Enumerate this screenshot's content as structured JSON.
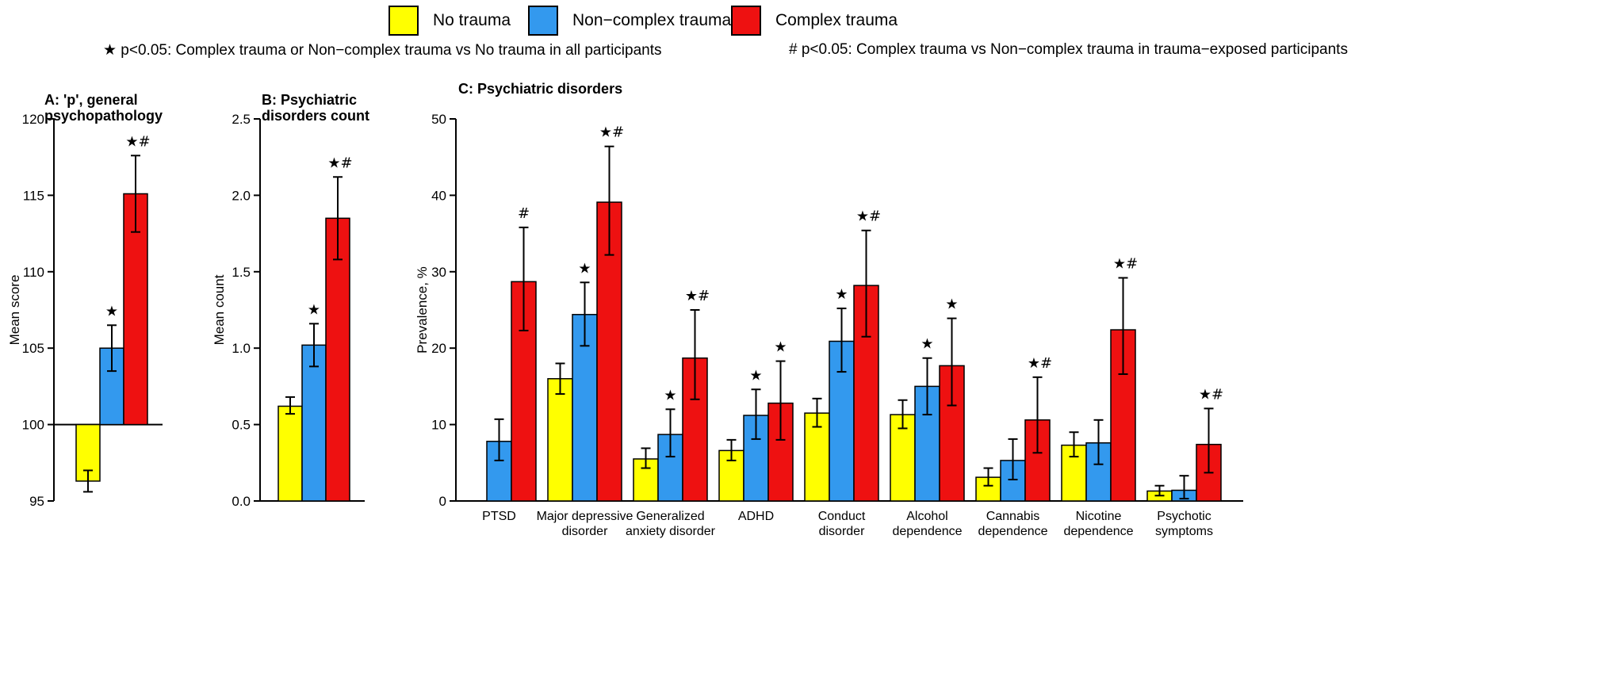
{
  "legend": {
    "items": [
      {
        "label": "No trauma",
        "color": "#ffff00"
      },
      {
        "label": "Non−complex trauma",
        "color": "#3399ee"
      },
      {
        "label": "Complex trauma",
        "color": "#ee1111"
      }
    ],
    "note_star": "★ p<0.05: Complex trauma or Non−complex trauma vs No trauma in all participants",
    "note_hash": "# p<0.05: Complex trauma vs Non−complex trauma in trauma−exposed participants"
  },
  "chart_data": [
    {
      "type": "bar",
      "title": [
        "A: 'p', general",
        "psychopathology"
      ],
      "ylabel": "Mean score",
      "ylim": [
        95,
        120
      ],
      "yticks": [
        "95",
        "100",
        "105",
        "110",
        "115",
        "120"
      ],
      "baseline": 100,
      "categories": [
        ""
      ],
      "series": [
        {
          "name": "No trauma",
          "values": [
            96.3
          ],
          "ci_low": [
            95.6
          ],
          "ci_high": [
            97.0
          ],
          "sig": [
            ""
          ]
        },
        {
          "name": "Non−complex trauma",
          "values": [
            105.0
          ],
          "ci_low": [
            103.5
          ],
          "ci_high": [
            106.5
          ],
          "sig": [
            "★"
          ]
        },
        {
          "name": "Complex trauma",
          "values": [
            115.1
          ],
          "ci_low": [
            112.6
          ],
          "ci_high": [
            117.6
          ],
          "sig": [
            "★#"
          ]
        }
      ]
    },
    {
      "type": "bar",
      "title": [
        "B: Psychiatric",
        "disorders count"
      ],
      "ylabel": "Mean count",
      "ylim": [
        0,
        2.5
      ],
      "yticks": [
        "0.0",
        "0.5",
        "1.0",
        "1.5",
        "2.0",
        "2.5"
      ],
      "baseline": 0,
      "categories": [
        ""
      ],
      "series": [
        {
          "name": "No trauma",
          "values": [
            0.62
          ],
          "ci_low": [
            0.57
          ],
          "ci_high": [
            0.68
          ],
          "sig": [
            ""
          ]
        },
        {
          "name": "Non−complex trauma",
          "values": [
            1.02
          ],
          "ci_low": [
            0.88
          ],
          "ci_high": [
            1.16
          ],
          "sig": [
            "★"
          ]
        },
        {
          "name": "Complex trauma",
          "values": [
            1.85
          ],
          "ci_low": [
            1.58
          ],
          "ci_high": [
            2.12
          ],
          "sig": [
            "★#"
          ]
        }
      ]
    },
    {
      "type": "bar",
      "title": [
        "C: Psychiatric disorders"
      ],
      "ylabel": "Prevalence, %",
      "ylim": [
        0,
        50
      ],
      "yticks": [
        "0",
        "10",
        "20",
        "30",
        "40",
        "50"
      ],
      "baseline": 0,
      "categories": [
        [
          "PTSD"
        ],
        [
          "Major depressive",
          "disorder"
        ],
        [
          "Generalized",
          "anxiety disorder"
        ],
        [
          "ADHD"
        ],
        [
          "Conduct",
          "disorder"
        ],
        [
          "Alcohol",
          "dependence"
        ],
        [
          "Cannabis",
          "dependence"
        ],
        [
          "Nicotine",
          "dependence"
        ],
        [
          "Psychotic",
          "symptoms"
        ]
      ],
      "series": [
        {
          "name": "No trauma",
          "values": [
            null,
            16.0,
            5.5,
            6.6,
            11.5,
            11.3,
            3.1,
            7.3,
            1.3
          ],
          "ci_low": [
            null,
            14.0,
            4.3,
            5.3,
            9.7,
            9.5,
            2.0,
            5.8,
            0.7
          ],
          "ci_high": [
            null,
            18.0,
            6.9,
            8.0,
            13.4,
            13.2,
            4.3,
            9.0,
            2.0
          ],
          "sig": [
            "",
            "",
            "",
            "",
            "",
            "",
            "",
            "",
            ""
          ]
        },
        {
          "name": "Non−complex trauma",
          "values": [
            7.8,
            24.4,
            8.7,
            11.2,
            20.9,
            15.0,
            5.3,
            7.6,
            1.4
          ],
          "ci_low": [
            5.3,
            20.3,
            5.8,
            8.1,
            16.9,
            11.3,
            2.8,
            4.8,
            0.3
          ],
          "ci_high": [
            10.7,
            28.6,
            12.0,
            14.6,
            25.2,
            18.7,
            8.1,
            10.6,
            3.3
          ],
          "sig": [
            "",
            "★",
            "★",
            "★",
            "★",
            "★",
            "",
            "",
            ""
          ]
        },
        {
          "name": "Complex trauma",
          "values": [
            28.7,
            39.1,
            18.7,
            12.8,
            28.2,
            17.7,
            10.6,
            22.4,
            7.4
          ],
          "ci_low": [
            22.3,
            32.2,
            13.3,
            8.0,
            21.5,
            12.5,
            6.3,
            16.6,
            3.7
          ],
          "ci_high": [
            35.8,
            46.4,
            25.0,
            18.3,
            35.4,
            23.9,
            16.2,
            29.2,
            12.1
          ],
          "sig": [
            "#",
            "★#",
            "★#",
            "★",
            "★#",
            "★",
            "★#",
            "★#",
            "★#"
          ]
        }
      ]
    }
  ]
}
